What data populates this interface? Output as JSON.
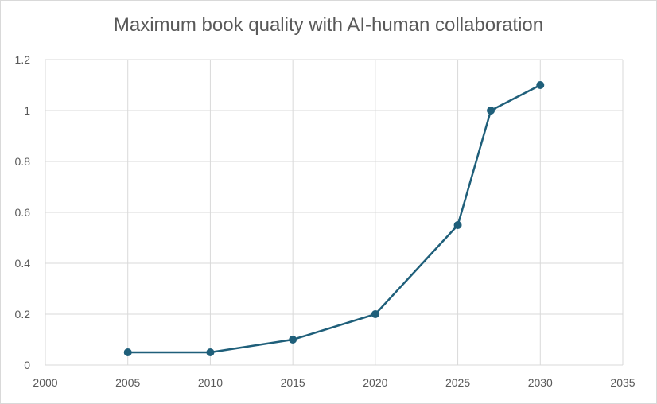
{
  "chart_data": {
    "type": "scatter",
    "title": "Maximum book quality with AI-human collaboration",
    "xlabel": "",
    "ylabel": "",
    "xlim": [
      2000,
      2035
    ],
    "ylim": [
      0,
      1.2
    ],
    "x_ticks": [
      "2000",
      "2005",
      "2010",
      "2015",
      "2020",
      "2025",
      "2030",
      "2035"
    ],
    "y_ticks": [
      "0",
      "0.2",
      "0.4",
      "0.6",
      "0.8",
      "1",
      "1.2"
    ],
    "grid": true,
    "legend": "none",
    "series": [
      {
        "points": [
          {
            "x": 2005,
            "y": 0.05
          },
          {
            "x": 2010,
            "y": 0.05
          },
          {
            "x": 2015,
            "y": 0.1
          },
          {
            "x": 2020,
            "y": 0.2
          },
          {
            "x": 2025,
            "y": 0.55
          },
          {
            "x": 2027,
            "y": 1.0
          },
          {
            "x": 2030,
            "y": 1.1
          }
        ],
        "color": "#1f5f7a"
      }
    ],
    "colors": {
      "grid": "#d9d9d9",
      "text": "#595959"
    }
  }
}
